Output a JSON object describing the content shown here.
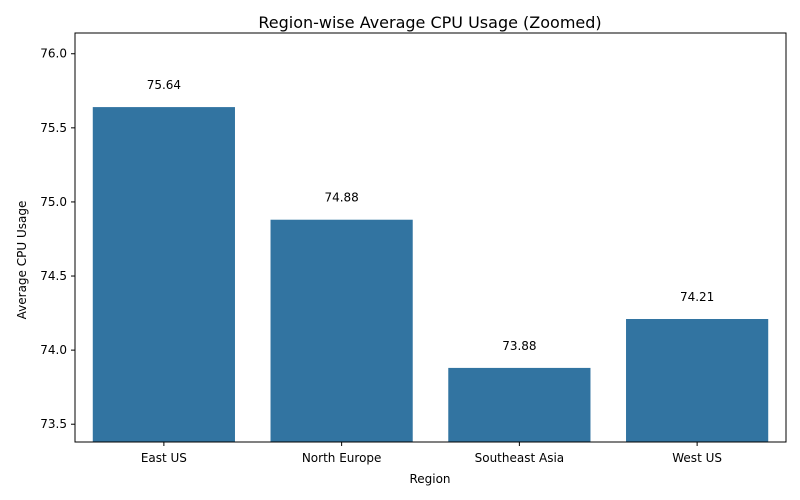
{
  "chart_data": {
    "type": "bar",
    "title": "Region-wise Average CPU Usage (Zoomed)",
    "xlabel": "Region",
    "ylabel": "Average CPU Usage",
    "categories": [
      "East US",
      "North Europe",
      "Southeast Asia",
      "West US"
    ],
    "values": [
      75.64,
      74.88,
      73.88,
      74.21
    ],
    "data_labels": [
      "75.64",
      "74.88",
      "73.88",
      "74.21"
    ],
    "ylim": [
      73.38,
      76.14
    ],
    "yticks": [
      73.5,
      74.0,
      74.5,
      75.0,
      75.5,
      76.0
    ],
    "ytick_labels": [
      "73.5",
      "74.0",
      "74.5",
      "75.0",
      "75.5",
      "76.0"
    ],
    "bar_color": "#3274a1",
    "grid": false,
    "legend": "none"
  }
}
